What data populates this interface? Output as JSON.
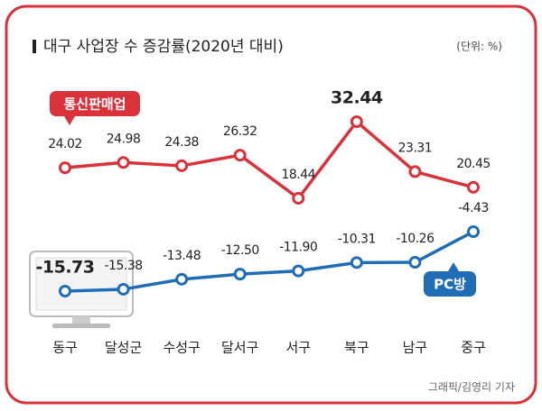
{
  "chart_data": {
    "type": "line",
    "title": "대구 사업장 수 증감률(2020년 대비)",
    "unit": "(단위: %)",
    "credit": "그래픽/김영리 기자",
    "categories": [
      "동구",
      "달성군",
      "수성구",
      "달서구",
      "서구",
      "북구",
      "남구",
      "중구"
    ],
    "series": [
      {
        "name": "통신판매업",
        "color": "#d9323a",
        "values": [
          24.02,
          24.98,
          24.38,
          26.32,
          18.44,
          32.44,
          23.31,
          20.45
        ]
      },
      {
        "name": "PC방",
        "color": "#1f6eb5",
        "values": [
          -15.73,
          -15.38,
          -13.48,
          -12.5,
          -11.9,
          -10.31,
          -10.26,
          -4.43
        ],
        "value_labels": [
          "-15.73",
          "-15.38",
          "-13.48",
          "-12.50",
          "-11.90",
          "-10.31",
          "-10.26",
          "-4.43"
        ]
      }
    ]
  }
}
